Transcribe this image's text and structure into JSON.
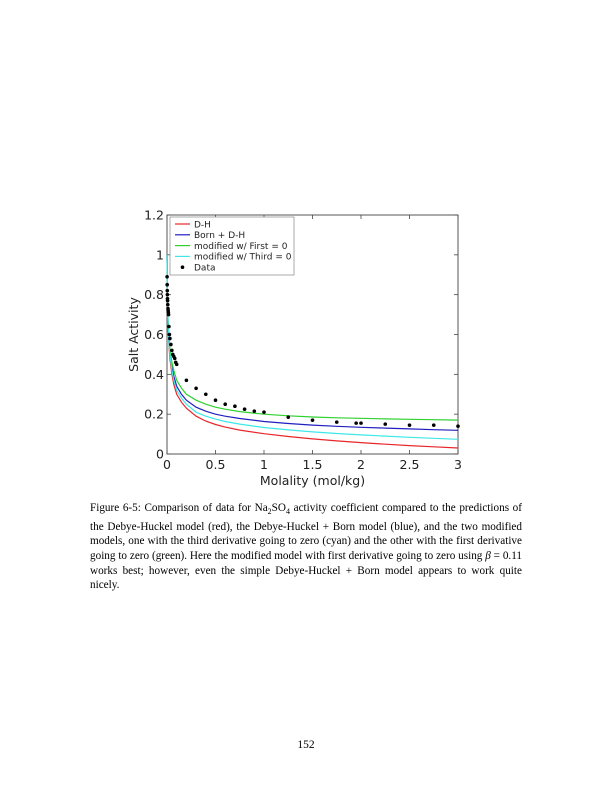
{
  "figure": {
    "chart_data": {
      "type": "line",
      "xlabel": "Molality (mol/kg)",
      "ylabel": "Salt Activity",
      "xlim": [
        0,
        3
      ],
      "ylim": [
        0,
        1.2
      ],
      "x_ticks": [
        0,
        0.5,
        1,
        1.5,
        2,
        2.5,
        3
      ],
      "x_tick_labels": [
        "0",
        "0.5",
        "1",
        "1.5",
        "2",
        "2.5",
        "3"
      ],
      "y_ticks": [
        0,
        0.2,
        0.4,
        0.6,
        0.8,
        1,
        1.2
      ],
      "y_tick_labels": [
        "0",
        "0.2",
        "0.4",
        "0.6",
        "0.8",
        "1",
        "1.2"
      ],
      "grid": false,
      "legend_position": "top-left",
      "series": [
        {
          "name": "D-H",
          "kind": "line",
          "color": "#e8262a",
          "x": [
            0,
            0.005,
            0.01,
            0.02,
            0.03,
            0.05,
            0.07,
            0.1,
            0.15,
            0.2,
            0.3,
            0.4,
            0.5,
            0.6,
            0.75,
            1,
            1.25,
            1.5,
            1.75,
            2,
            2.25,
            2.5,
            2.75,
            3
          ],
          "y": [
            1.0,
            0.75,
            0.65,
            0.55,
            0.48,
            0.4,
            0.35,
            0.3,
            0.26,
            0.23,
            0.19,
            0.165,
            0.148,
            0.135,
            0.12,
            0.102,
            0.088,
            0.076,
            0.066,
            0.057,
            0.049,
            0.042,
            0.036,
            0.03
          ]
        },
        {
          "name": "Born + D-H",
          "kind": "line",
          "color": "#1f1fbf",
          "x": [
            0,
            0.005,
            0.01,
            0.02,
            0.03,
            0.05,
            0.07,
            0.1,
            0.15,
            0.2,
            0.3,
            0.4,
            0.5,
            0.6,
            0.75,
            1,
            1.25,
            1.5,
            1.75,
            2,
            2.25,
            2.5,
            2.75,
            3
          ],
          "y": [
            1.0,
            0.76,
            0.67,
            0.57,
            0.51,
            0.44,
            0.39,
            0.34,
            0.3,
            0.27,
            0.235,
            0.215,
            0.2,
            0.19,
            0.178,
            0.163,
            0.153,
            0.145,
            0.139,
            0.134,
            0.13,
            0.126,
            0.122,
            0.119
          ]
        },
        {
          "name": "modified w/ First = 0",
          "kind": "line",
          "color": "#2ed12e",
          "x": [
            0,
            0.005,
            0.01,
            0.02,
            0.03,
            0.05,
            0.07,
            0.1,
            0.15,
            0.2,
            0.3,
            0.4,
            0.5,
            0.6,
            0.75,
            1,
            1.25,
            1.5,
            1.75,
            2,
            2.25,
            2.5,
            2.75,
            3
          ],
          "y": [
            1.0,
            0.77,
            0.68,
            0.59,
            0.53,
            0.46,
            0.42,
            0.37,
            0.33,
            0.3,
            0.27,
            0.25,
            0.235,
            0.225,
            0.213,
            0.2,
            0.192,
            0.186,
            0.182,
            0.179,
            0.176,
            0.174,
            0.172,
            0.17
          ]
        },
        {
          "name": "modified w/ Third = 0",
          "kind": "line",
          "color": "#3de8e8",
          "x": [
            0,
            0.005,
            0.01,
            0.02,
            0.03,
            0.05,
            0.07,
            0.1,
            0.15,
            0.2,
            0.3,
            0.4,
            0.5,
            0.6,
            0.75,
            1,
            1.25,
            1.5,
            1.75,
            2,
            2.25,
            2.5,
            2.75,
            3
          ],
          "y": [
            1.0,
            0.75,
            0.66,
            0.56,
            0.5,
            0.42,
            0.37,
            0.32,
            0.28,
            0.25,
            0.21,
            0.19,
            0.175,
            0.163,
            0.15,
            0.133,
            0.121,
            0.111,
            0.103,
            0.096,
            0.09,
            0.084,
            0.079,
            0.074
          ]
        },
        {
          "name": "Data",
          "kind": "scatter",
          "color": "#000000",
          "x": [
            0.001,
            0.002,
            0.003,
            0.004,
            0.005,
            0.006,
            0.008,
            0.01,
            0.012,
            0.014,
            0.016,
            0.02,
            0.025,
            0.03,
            0.04,
            0.05,
            0.06,
            0.07,
            0.08,
            0.09,
            0.1,
            0.2,
            0.3,
            0.4,
            0.5,
            0.6,
            0.7,
            0.8,
            0.9,
            1.0,
            1.25,
            1.5,
            1.75,
            1.95,
            2.0,
            2.25,
            2.5,
            2.75,
            3.0
          ],
          "y": [
            0.89,
            0.85,
            0.82,
            0.8,
            0.78,
            0.77,
            0.75,
            0.73,
            0.72,
            0.71,
            0.7,
            0.64,
            0.6,
            0.58,
            0.55,
            0.52,
            0.5,
            0.49,
            0.48,
            0.46,
            0.45,
            0.37,
            0.33,
            0.3,
            0.27,
            0.25,
            0.24,
            0.225,
            0.215,
            0.21,
            0.185,
            0.17,
            0.16,
            0.155,
            0.155,
            0.15,
            0.145,
            0.145,
            0.14
          ]
        }
      ]
    }
  },
  "caption": {
    "p1": "Figure 6-5: Comparison of data for Na",
    "sub1": "2",
    "p2": "SO",
    "sub2": "4",
    "p3": " activity coefficient compared to the predictions of the Debye-Huckel model (red), the Debye-Huckel + Born model (blue), and the two modified models, one with the third derivative going to zero (cyan) and the other with the first derivative going to zero (green). Here the modified model with first derivative going to zero using ",
    "beta": "β",
    "p4": " = 0.11 works best; however, even the simple Debye-Huckel + Born model appears to work quite nicely."
  },
  "page_number": "152"
}
